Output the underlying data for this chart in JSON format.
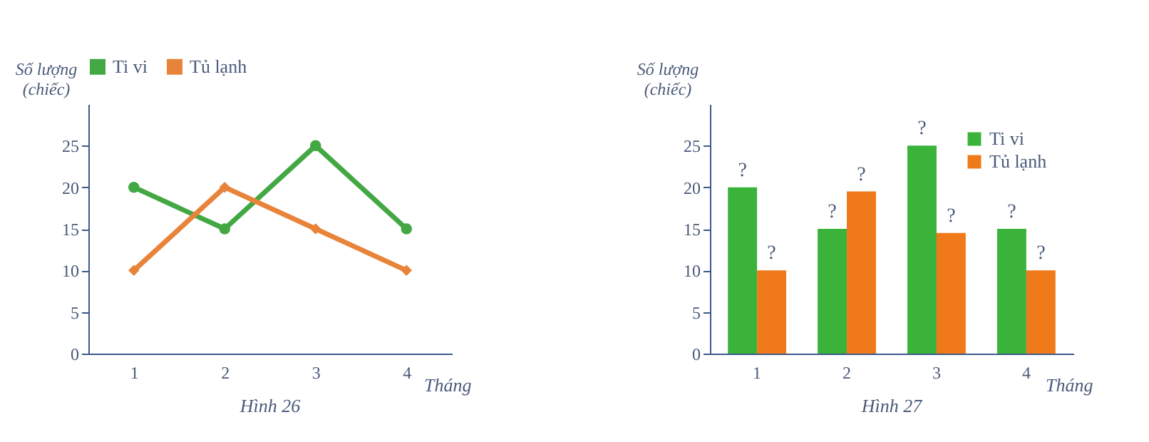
{
  "chart_data": [
    {
      "type": "line",
      "categories": [
        "1",
        "2",
        "3",
        "4"
      ],
      "series": [
        {
          "name": "Ti vi",
          "color": "#43a843",
          "marker": "circle",
          "values": [
            20,
            15,
            25,
            15
          ]
        },
        {
          "name": "Tủ lạnh",
          "color": "#e8843a",
          "marker": "diamond",
          "values": [
            10,
            20,
            15,
            10
          ]
        }
      ],
      "ylim": [
        0,
        30
      ],
      "yticks": [
        0,
        5,
        10,
        15,
        20,
        25
      ],
      "xlabel": "Tháng",
      "ylabel": "Số lượng\n(chiếc)",
      "legend": "top",
      "annotations": [
        "Hình 26"
      ]
    },
    {
      "type": "bar",
      "categories": [
        "1",
        "2",
        "3",
        "4"
      ],
      "series": [
        {
          "name": "Ti vi",
          "color": "#3bb33b",
          "values": [
            20,
            15,
            25,
            15
          ],
          "value_labels": [
            "?",
            "?",
            "?",
            "?"
          ]
        },
        {
          "name": "Tủ lạnh",
          "color": "#f07a1a",
          "values": [
            10,
            19.5,
            14.5,
            10
          ],
          "value_labels": [
            "?",
            "?",
            "?",
            "?"
          ]
        }
      ],
      "ylim": [
        0,
        30
      ],
      "yticks": [
        0,
        5,
        10,
        15,
        20,
        25
      ],
      "xlabel": "Tháng",
      "ylabel": "Số lượng\n(chiếc)",
      "legend": "top right",
      "annotations": [
        "Hình 27"
      ]
    }
  ]
}
